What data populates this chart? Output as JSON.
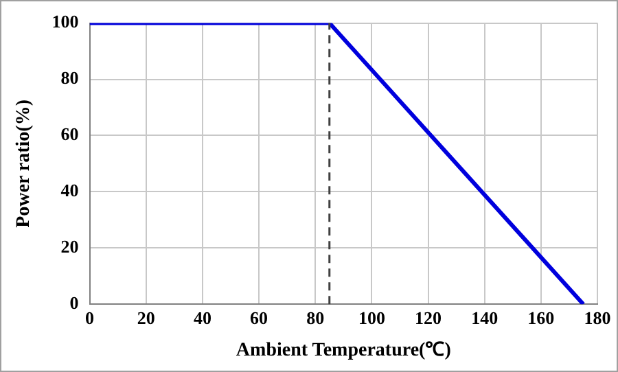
{
  "chart_data": {
    "type": "line",
    "xlabel": "Ambient Temperature(℃)",
    "ylabel": "Power ratio(%)",
    "x": [
      0,
      85,
      175
    ],
    "series": [
      {
        "color": "#0000dd",
        "values": [
          100,
          100,
          0
        ]
      }
    ],
    "xlim": [
      0,
      180
    ],
    "xticks": [
      0,
      20,
      40,
      60,
      80,
      100,
      120,
      140,
      160,
      180
    ],
    "ylim": [
      0,
      100
    ],
    "yticks": [
      0,
      20,
      40,
      60,
      80,
      100
    ],
    "grid": true,
    "legend": false,
    "marker": "none",
    "line_style": "solid",
    "ref_lines": [
      {
        "axis": "x",
        "value": 85,
        "color": "#404040",
        "line_style": "dashed"
      }
    ]
  }
}
